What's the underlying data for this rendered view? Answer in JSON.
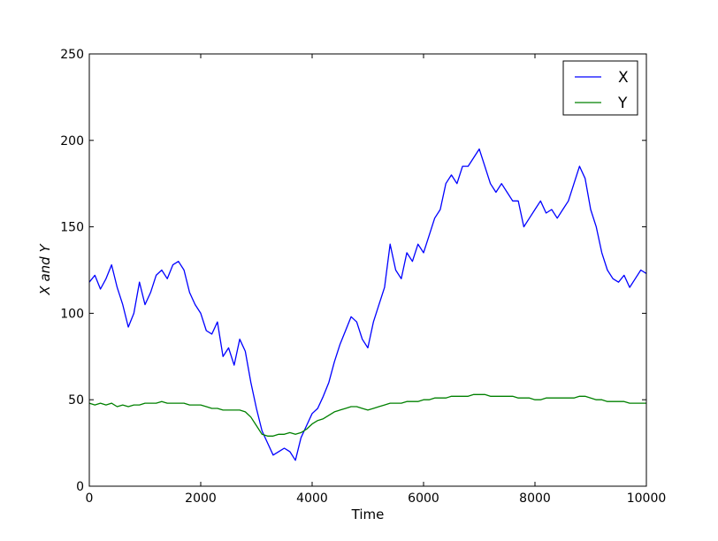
{
  "chart_data": {
    "type": "line",
    "title": "",
    "xlabel": "Time",
    "ylabel": "X and Y",
    "xlim": [
      0,
      10000
    ],
    "ylim": [
      0,
      250
    ],
    "x_ticks": [
      "0",
      "2000",
      "4000",
      "6000",
      "8000",
      "10000"
    ],
    "y_ticks": [
      "0",
      "50",
      "100",
      "150",
      "200",
      "250"
    ],
    "grid": false,
    "legend": "top-right",
    "x": [
      0,
      100,
      200,
      300,
      400,
      500,
      600,
      700,
      800,
      900,
      1000,
      1100,
      1200,
      1300,
      1400,
      1500,
      1600,
      1700,
      1800,
      1900,
      2000,
      2100,
      2200,
      2300,
      2400,
      2500,
      2600,
      2700,
      2800,
      2900,
      3000,
      3100,
      3200,
      3300,
      3400,
      3500,
      3600,
      3700,
      3800,
      3900,
      4000,
      4100,
      4200,
      4300,
      4400,
      4500,
      4600,
      4700,
      4800,
      4900,
      5000,
      5100,
      5200,
      5300,
      5400,
      5500,
      5600,
      5700,
      5800,
      5900,
      6000,
      6100,
      6200,
      6300,
      6400,
      6500,
      6600,
      6700,
      6800,
      6900,
      7000,
      7100,
      7200,
      7300,
      7400,
      7500,
      7600,
      7700,
      7800,
      7900,
      8000,
      8100,
      8200,
      8300,
      8400,
      8500,
      8600,
      8700,
      8800,
      8900,
      9000,
      9100,
      9200,
      9300,
      9400,
      9500,
      9600,
      9700,
      9800,
      9900,
      10000
    ],
    "series": [
      {
        "name": "X",
        "color": "#0000ff",
        "values": [
          118,
          122,
          114,
          120,
          128,
          115,
          105,
          92,
          100,
          118,
          105,
          112,
          122,
          125,
          120,
          128,
          130,
          125,
          112,
          105,
          100,
          90,
          88,
          95,
          75,
          80,
          70,
          85,
          78,
          60,
          45,
          32,
          25,
          18,
          20,
          22,
          20,
          15,
          28,
          35,
          42,
          45,
          52,
          60,
          72,
          82,
          90,
          98,
          95,
          85,
          80,
          95,
          105,
          115,
          140,
          125,
          120,
          135,
          130,
          140,
          135,
          145,
          155,
          160,
          175,
          180,
          175,
          185,
          185,
          190,
          195,
          185,
          175,
          170,
          175,
          170,
          165,
          165,
          150,
          155,
          160,
          165,
          158,
          160,
          155,
          160,
          165,
          175,
          185,
          178,
          160,
          150,
          135,
          125,
          120,
          118,
          122,
          115,
          120,
          125,
          123
        ]
      },
      {
        "name": "Y",
        "color": "#008000",
        "values": [
          48,
          47,
          48,
          47,
          48,
          46,
          47,
          46,
          47,
          47,
          48,
          48,
          48,
          49,
          48,
          48,
          48,
          48,
          47,
          47,
          47,
          46,
          45,
          45,
          44,
          44,
          44,
          44,
          43,
          40,
          35,
          30,
          29,
          29,
          30,
          30,
          31,
          30,
          31,
          33,
          36,
          38,
          39,
          41,
          43,
          44,
          45,
          46,
          46,
          45,
          44,
          45,
          46,
          47,
          48,
          48,
          48,
          49,
          49,
          49,
          50,
          50,
          51,
          51,
          51,
          52,
          52,
          52,
          52,
          53,
          53,
          53,
          52,
          52,
          52,
          52,
          52,
          51,
          51,
          51,
          50,
          50,
          51,
          51,
          51,
          51,
          51,
          51,
          52,
          52,
          51,
          50,
          50,
          49,
          49,
          49,
          49,
          48,
          48,
          48,
          48
        ]
      }
    ]
  }
}
